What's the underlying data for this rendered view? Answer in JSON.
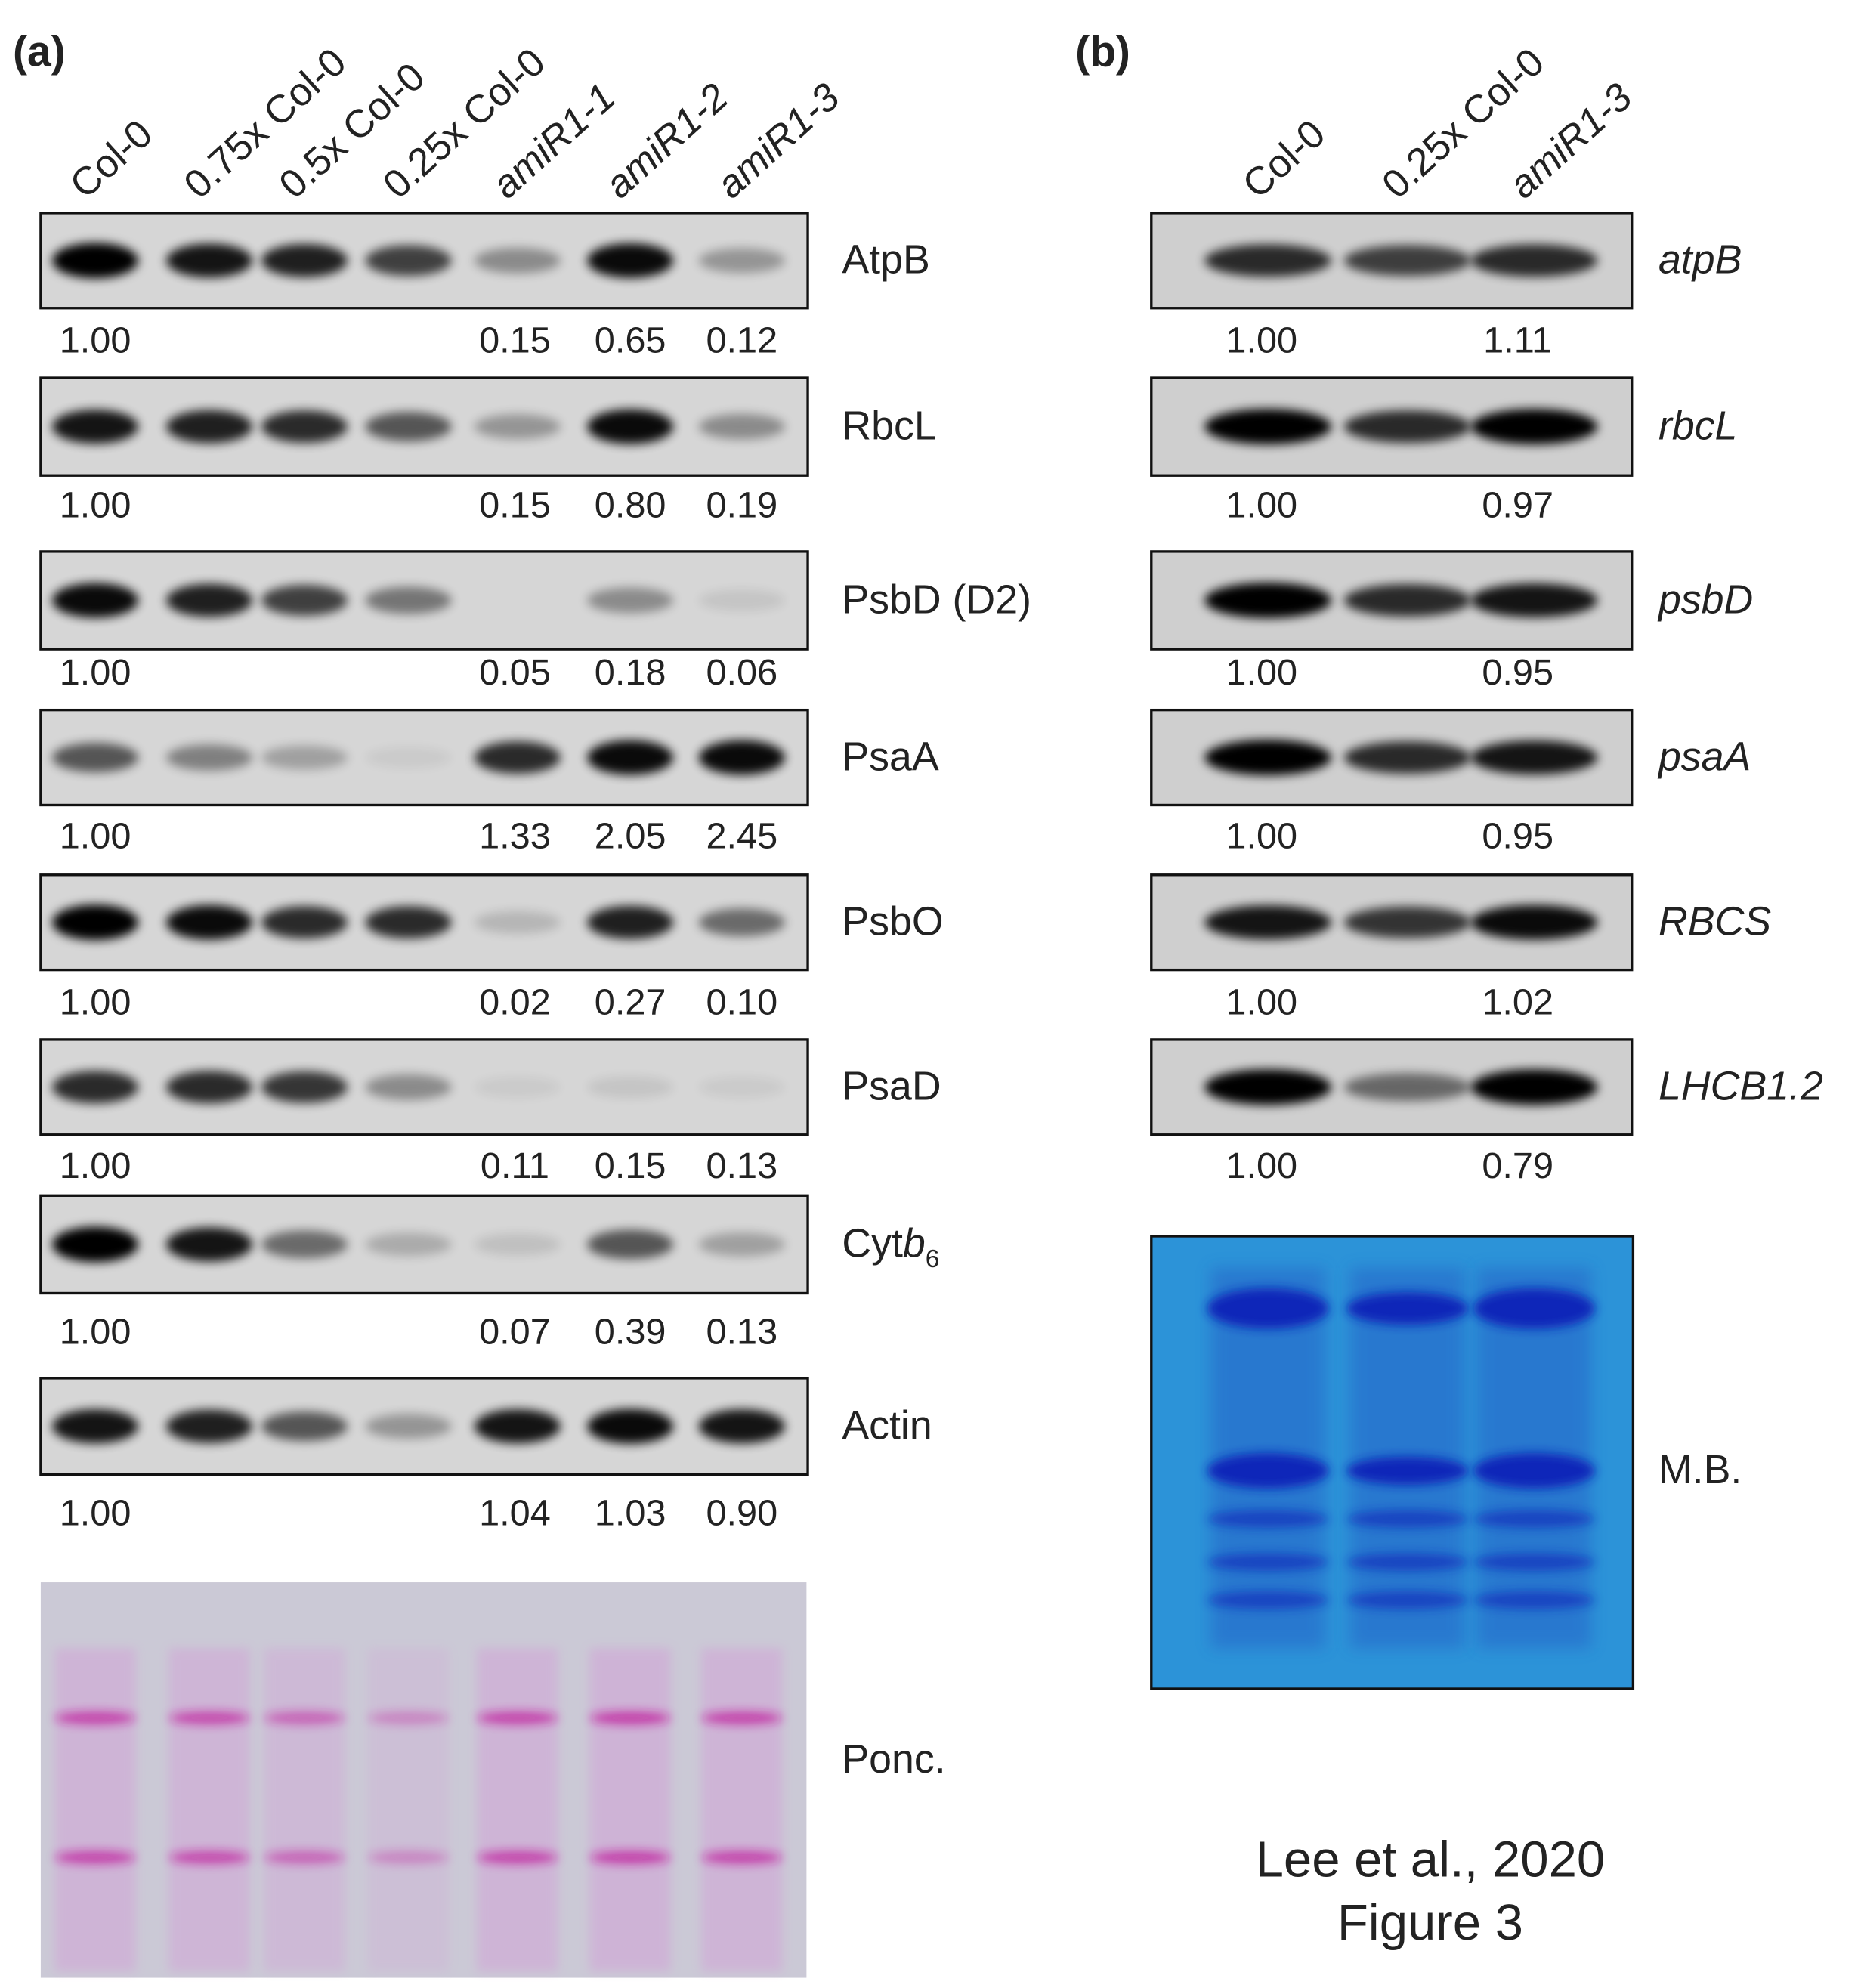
{
  "panel_a": {
    "label": "(a)",
    "lanes": [
      "Col-0",
      "0.75x Col-0",
      "0.5x Col-0",
      "0.25x Col-0",
      "amiR1-1",
      "amiR1-2",
      "amiR1-3"
    ],
    "blots": [
      {
        "name": "AtpB",
        "values": [
          "1.00",
          null,
          null,
          null,
          "0.15",
          "0.65",
          "0.12"
        ]
      },
      {
        "name": "RbcL",
        "values": [
          "1.00",
          null,
          null,
          null,
          "0.15",
          "0.80",
          "0.19"
        ]
      },
      {
        "name": "PsbD (D2)",
        "values": [
          "1.00",
          null,
          null,
          null,
          "0.05",
          "0.18",
          "0.06"
        ]
      },
      {
        "name": "PsaA",
        "values": [
          "1.00",
          null,
          null,
          null,
          "1.33",
          "2.05",
          "2.45"
        ]
      },
      {
        "name": "PsbO",
        "values": [
          "1.00",
          null,
          null,
          null,
          "0.02",
          "0.27",
          "0.10"
        ]
      },
      {
        "name": "PsaD",
        "values": [
          "1.00",
          null,
          null,
          null,
          "0.11",
          "0.15",
          "0.13"
        ]
      },
      {
        "name": [
          "Cyt",
          "b",
          "6"
        ],
        "values": [
          "1.00",
          null,
          null,
          null,
          "0.07",
          "0.39",
          "0.13"
        ]
      },
      {
        "name": "Actin",
        "values": [
          "1.00",
          null,
          null,
          null,
          "1.04",
          "1.03",
          "0.90"
        ]
      }
    ],
    "stain": "Ponc."
  },
  "panel_b": {
    "label": "(b)",
    "lanes": [
      "Col-0",
      "0.25x Col-0",
      "amiR1-3"
    ],
    "blots": [
      {
        "name": "atpB",
        "values": [
          "1.00",
          null,
          "1.11"
        ]
      },
      {
        "name": "rbcL",
        "values": [
          "1.00",
          null,
          "0.97"
        ]
      },
      {
        "name": "psbD",
        "values": [
          "1.00",
          null,
          "0.95"
        ]
      },
      {
        "name": "psaA",
        "values": [
          "1.00",
          null,
          "0.95"
        ]
      },
      {
        "name": "RBCS",
        "values": [
          "1.00",
          null,
          "1.02"
        ]
      },
      {
        "name": "LHCB1.2",
        "values": [
          "1.00",
          null,
          "0.79"
        ]
      }
    ],
    "stain": "M.B."
  },
  "caption": [
    "Lee et al., 2020",
    "Figure 3"
  ]
}
